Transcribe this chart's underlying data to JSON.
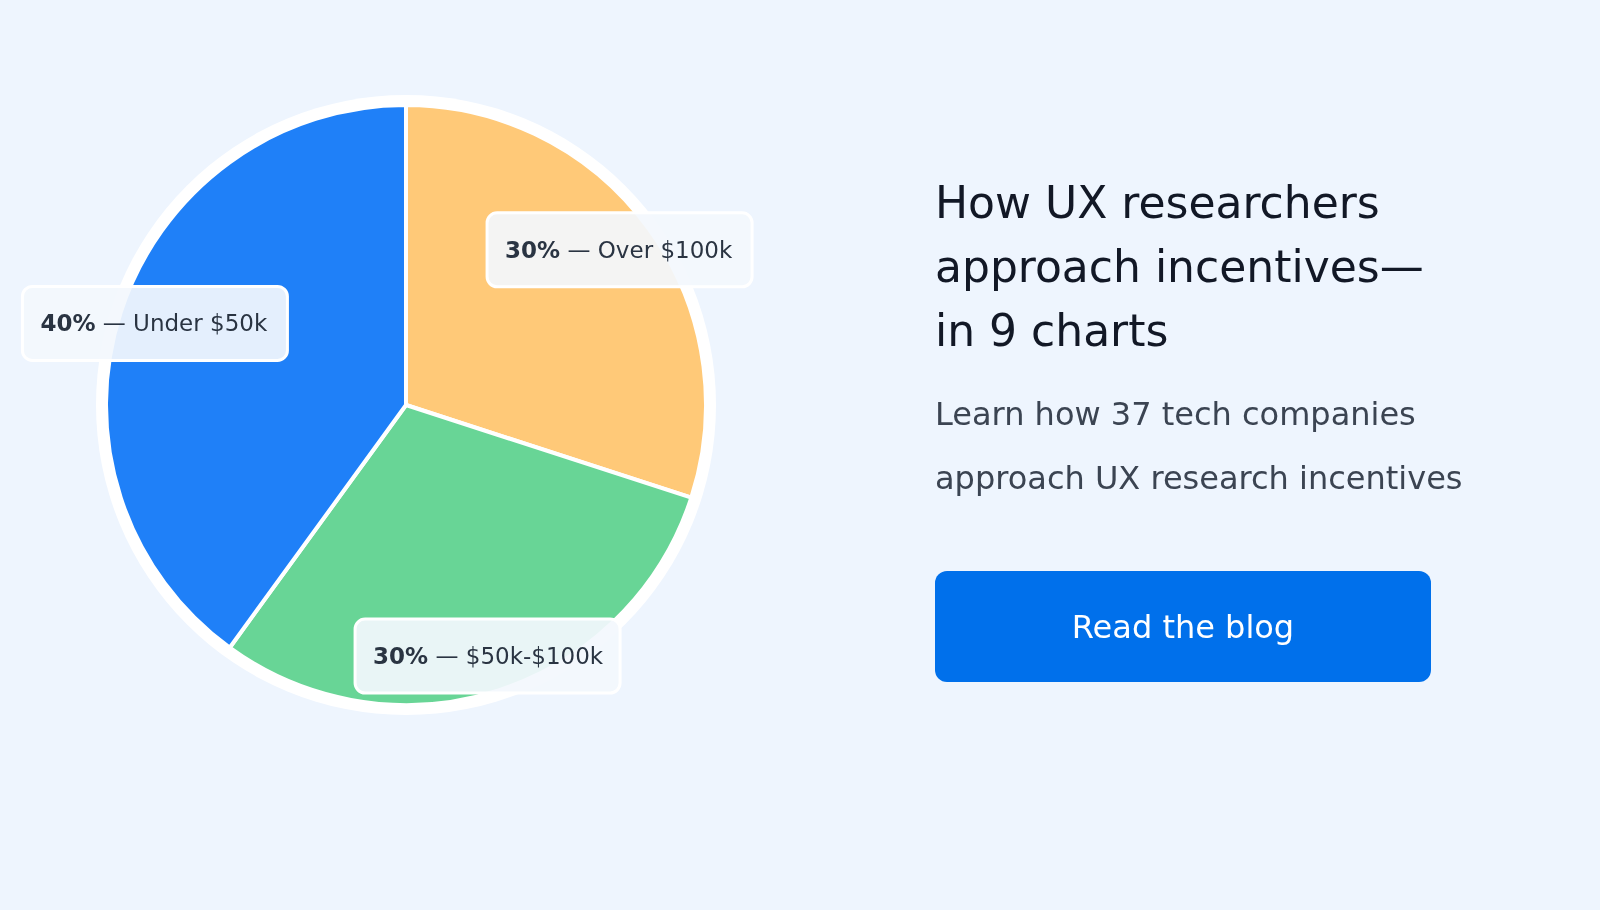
{
  "chart_data": {
    "type": "pie",
    "title": "How UX researchers approach incentives—in 9 charts",
    "subtitle": "Learn how 37 tech companies approach UX research incentives",
    "categories": [
      "— Over $100k",
      "— $50k-$100k",
      "— Under $50k"
    ],
    "value_labels": [
      "30%",
      "30%",
      "40%"
    ],
    "values": [
      30,
      30,
      40
    ],
    "colors": [
      "#ffc978",
      "#68d596",
      "#1f80f8"
    ],
    "annotations": [
      "Read the blog"
    ]
  }
}
